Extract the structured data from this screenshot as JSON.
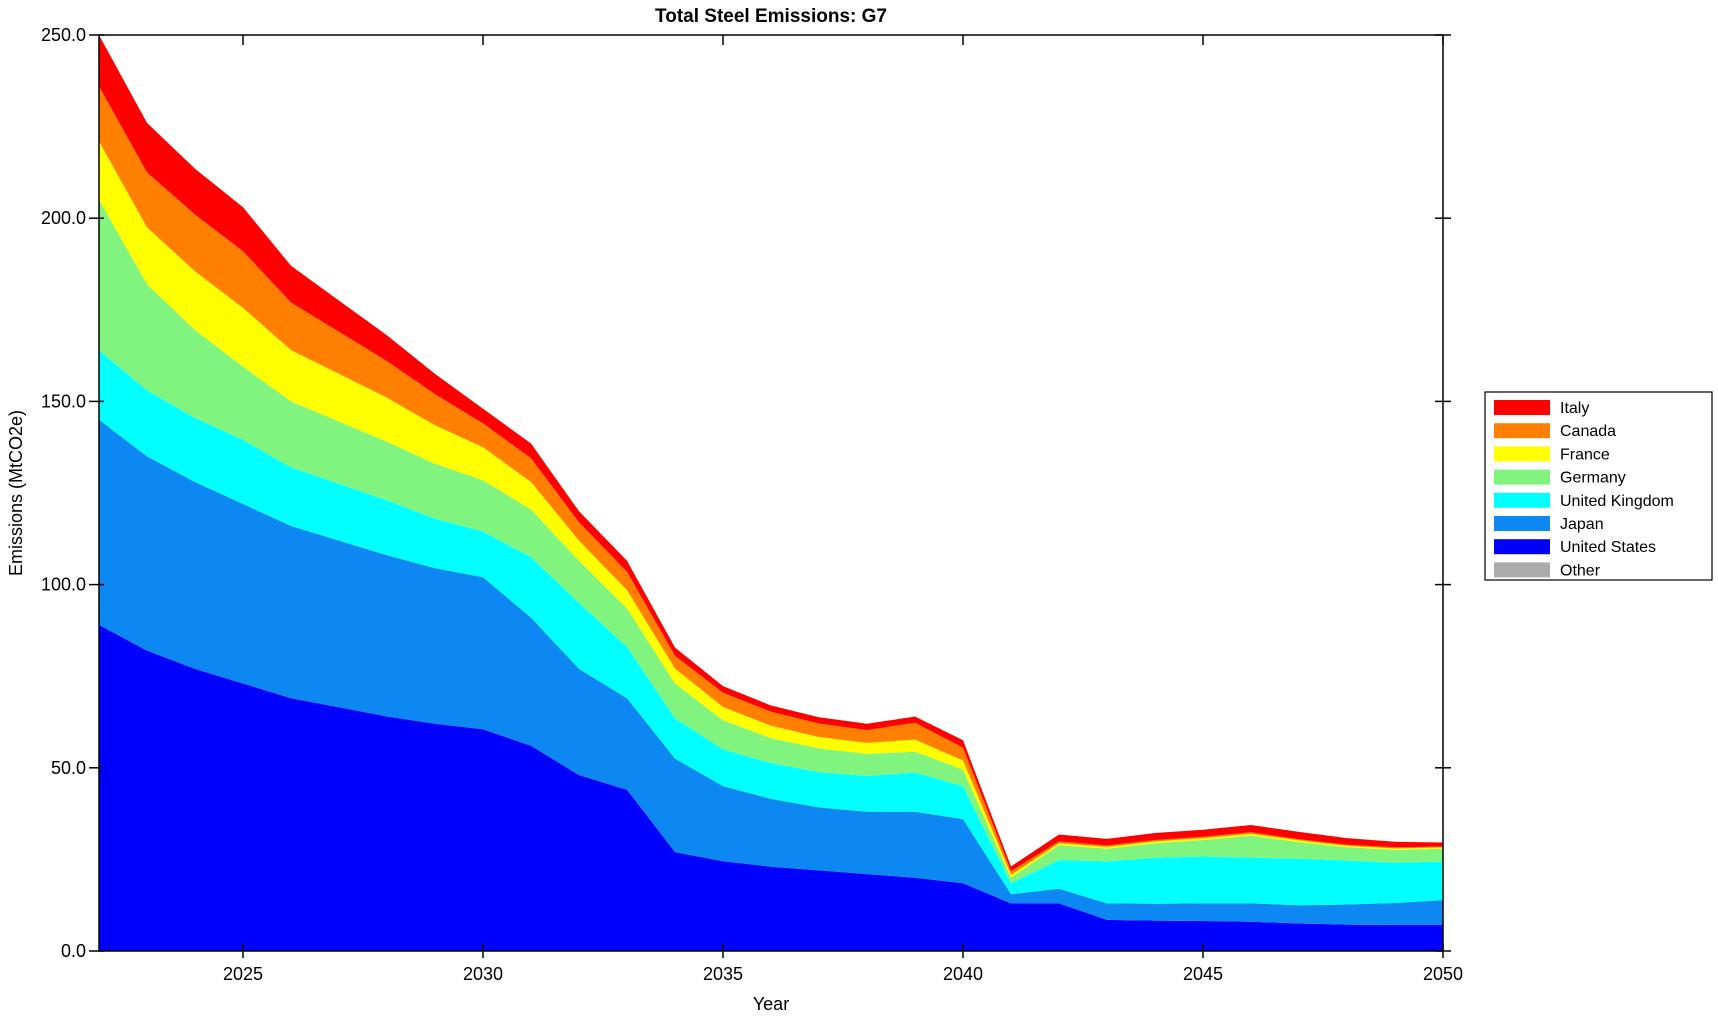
{
  "title": "Total Steel Emissions: G7",
  "chart_data": {
    "type": "area",
    "stacked": true,
    "title": "Total Steel Emissions: G7",
    "xlabel": "Year",
    "ylabel": "Emissions (MtCO2e)",
    "xlim": [
      2022,
      2050
    ],
    "ylim": [
      0,
      250
    ],
    "grid": false,
    "legend_position": "right-outside",
    "background_color": "#ffffff",
    "axis_color": "#000000",
    "xticks": {
      "values": [
        2025,
        2030,
        2035,
        2040,
        2045,
        2050
      ],
      "labels": [
        "2025",
        "2030",
        "2035",
        "2040",
        "2045",
        "2050"
      ]
    },
    "yticks": {
      "values": [
        0,
        50,
        100,
        150,
        200,
        250
      ],
      "labels": [
        "0.0",
        "50.0",
        "100.0",
        "150.0",
        "200.0",
        "250.0"
      ]
    },
    "x": [
      2022,
      2023,
      2024,
      2025,
      2026,
      2027,
      2028,
      2029,
      2030,
      2031,
      2032,
      2033,
      2034,
      2035,
      2036,
      2037,
      2038,
      2039,
      2040,
      2041,
      2042,
      2043,
      2044,
      2045,
      2046,
      2047,
      2048,
      2049,
      2050
    ],
    "stack_bottom_to_top": [
      "Other",
      "United States",
      "Japan",
      "United Kingdom",
      "Germany",
      "France",
      "Canada",
      "Italy"
    ],
    "series": [
      {
        "name": "Italy",
        "color": "#ff0000",
        "values": [
          14,
          13.5,
          12.5,
          12,
          10,
          8.5,
          7,
          5.5,
          4,
          4,
          3,
          3,
          2.2,
          1.8,
          1.7,
          1.7,
          1.7,
          1.7,
          2,
          1.3,
          1.9,
          1.8,
          1.9,
          1.9,
          2,
          2,
          1.8,
          1.5,
          1.1
        ]
      },
      {
        "name": "Canada",
        "color": "#ff8000",
        "values": [
          15,
          15,
          15.5,
          15.5,
          13,
          11.5,
          10,
          8.5,
          6.5,
          6.5,
          5,
          5,
          3.5,
          3.9,
          3.8,
          3.7,
          3.5,
          4.6,
          3.5,
          1,
          0.5,
          0.4,
          0.4,
          0.4,
          0.4,
          0.3,
          0.3,
          0.3,
          0.2
        ]
      },
      {
        "name": "France",
        "color": "#ffff00",
        "values": [
          16,
          15.5,
          16,
          16,
          14,
          13,
          12,
          10.5,
          9,
          7.5,
          5.5,
          5,
          4.1,
          3.6,
          3.4,
          3.1,
          3,
          3.3,
          2.5,
          0.8,
          0.5,
          0.5,
          0.5,
          0.5,
          0.5,
          0.5,
          0.4,
          0.4,
          0.4
        ]
      },
      {
        "name": "Germany",
        "color": "#80f47e",
        "values": [
          41,
          29,
          24,
          20,
          18,
          17,
          16,
          15,
          14,
          13,
          11.5,
          10.5,
          9.5,
          8,
          6.8,
          6.5,
          6,
          5.7,
          4.5,
          1.5,
          4.1,
          3.4,
          4,
          4.5,
          6,
          4.5,
          3.6,
          3.5,
          3.5
        ]
      },
      {
        "name": "United Kingdom",
        "color": "#00ffff",
        "values": [
          19,
          18,
          17.5,
          17.5,
          16,
          15.5,
          15,
          13.5,
          12.5,
          16.5,
          18,
          14,
          11,
          10,
          9.8,
          9.6,
          9.8,
          10.7,
          9,
          3,
          7.8,
          11.5,
          12.5,
          12.8,
          12.5,
          12.7,
          12,
          11,
          10.5
        ]
      },
      {
        "name": "Japan",
        "color": "#0d87f2",
        "values": [
          56,
          53,
          51,
          49,
          47,
          45.5,
          44,
          42.5,
          41.5,
          35,
          29,
          25,
          25.5,
          20.5,
          18.5,
          17.2,
          17,
          18,
          17.5,
          2.5,
          4,
          4.5,
          4.6,
          4.8,
          5,
          5,
          5.5,
          6,
          6.8
        ]
      },
      {
        "name": "United States",
        "color": "#0000ff",
        "values": [
          89,
          82,
          77,
          73,
          69,
          66.5,
          64,
          62,
          60.5,
          56,
          48,
          44,
          27,
          24.5,
          23,
          22,
          21,
          20,
          18.5,
          13,
          13,
          8.5,
          8.3,
          8.2,
          8,
          7.5,
          7.2,
          7.1,
          7.1
        ]
      },
      {
        "name": "Other",
        "color": "#ababab",
        "values": [
          0,
          0,
          0,
          0,
          0,
          0,
          0,
          0,
          0,
          0,
          0,
          0,
          0,
          0,
          0,
          0,
          0,
          0,
          0,
          0,
          0,
          0,
          0,
          0,
          0,
          0,
          0,
          0,
          0
        ]
      }
    ]
  }
}
